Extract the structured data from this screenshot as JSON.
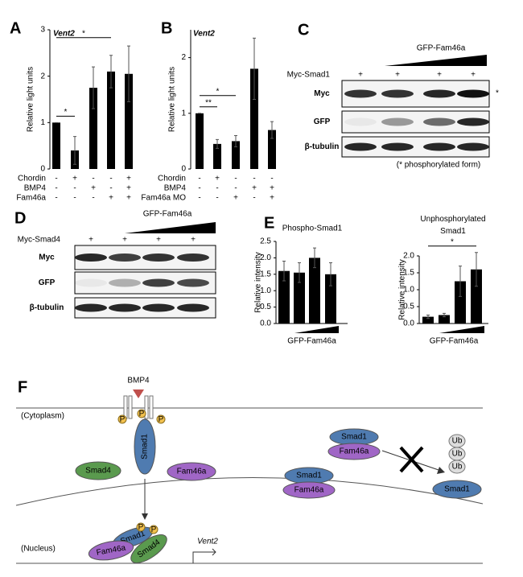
{
  "chart_data": [
    {
      "type": "bar",
      "panel_label": "A",
      "title": "Vent2",
      "ylabel": "Relative light units",
      "categories": [
        null,
        null,
        null,
        null,
        null
      ],
      "values": [
        1.0,
        0.4,
        1.75,
        2.1,
        2.05
      ],
      "errors": [
        0,
        0.3,
        0.45,
        0.35,
        0.6
      ],
      "color": "#000000",
      "ylim": [
        0,
        3
      ],
      "yticks": [
        0,
        1,
        2,
        3
      ],
      "conditions": [
        {
          "name": "Chordin",
          "marks": [
            "-",
            "+",
            "-",
            "-",
            "+"
          ]
        },
        {
          "name": "BMP4",
          "marks": [
            "-",
            "-",
            "+",
            "-",
            "+"
          ]
        },
        {
          "name": "Fam46a",
          "marks": [
            "-",
            "-",
            "-",
            "+",
            "+"
          ]
        }
      ],
      "annotations": [
        {
          "text": "*",
          "between": [
            0,
            1
          ]
        },
        {
          "text": "*",
          "between": [
            0,
            3
          ]
        }
      ]
    },
    {
      "type": "bar",
      "panel_label": "B",
      "title": "Vent2",
      "ylabel": "Relative light units",
      "categories": [
        null,
        null,
        null,
        null,
        null
      ],
      "values": [
        1.0,
        0.45,
        0.5,
        1.8,
        0.7
      ],
      "errors": [
        0,
        0.08,
        0.1,
        0.55,
        0.15
      ],
      "color": "#000000",
      "ylim": [
        0,
        2.5
      ],
      "yticks": [
        0,
        1,
        2
      ],
      "conditions": [
        {
          "name": "Chordin",
          "marks": [
            "-",
            "+",
            "-",
            "-",
            "-"
          ]
        },
        {
          "name": "BMP4",
          "marks": [
            "-",
            "-",
            "-",
            "+",
            "+"
          ]
        },
        {
          "name": "Fam46a  MO",
          "marks": [
            "-",
            "-",
            "+",
            "-",
            "+"
          ]
        }
      ],
      "annotations": [
        {
          "text": "**",
          "between": [
            0,
            1
          ]
        },
        {
          "text": "*",
          "between": [
            0,
            2
          ]
        }
      ]
    },
    {
      "type": "bar",
      "panel_label": "E",
      "title": "Phospho-Smad1",
      "ylabel": "Relative intensity",
      "xlabel": "GFP-Fam46a",
      "categories": [
        null,
        null,
        null,
        null
      ],
      "values": [
        1.6,
        1.55,
        2.0,
        1.5
      ],
      "errors": [
        0.3,
        0.3,
        0.3,
        0.35
      ],
      "color": "#000000",
      "ylim": [
        0,
        2.5
      ],
      "yticks": [
        {
          "value": 0,
          "label": "0.0"
        },
        0.5,
        {
          "value": 1,
          "label": "1.0"
        },
        1.5,
        {
          "value": 2,
          "label": "2.0"
        },
        2.5
      ]
    },
    {
      "type": "bar",
      "title": "Unphosphorylated Smad1",
      "ylabel": "Relative intensity",
      "xlabel": "GFP-Fam46a",
      "categories": [
        null,
        null,
        null,
        null
      ],
      "values": [
        0.2,
        0.25,
        1.25,
        1.6
      ],
      "errors": [
        0.05,
        0.05,
        0.45,
        0.5
      ],
      "color": "#000000",
      "ylim": [
        0,
        2
      ],
      "yticks": [
        {
          "value": 0,
          "label": "0.0"
        },
        0.5,
        {
          "value": 1,
          "label": "1.0"
        },
        1.5,
        {
          "value": 2,
          "label": "2.0"
        }
      ],
      "annotations": [
        {
          "text": "*",
          "between": [
            0,
            3
          ]
        }
      ]
    }
  ],
  "blots": [
    {
      "label": "C",
      "treatment": "GFP-Fam46a",
      "construct": "Myc-Smad1",
      "lanes": [
        "+",
        "+",
        "+",
        "+"
      ],
      "rows": [
        "Myc",
        "GFP",
        "β-tubulin"
      ],
      "marker": "*",
      "note": "(* phosphorylated form)"
    },
    {
      "label": "D",
      "treatment": "GFP-Fam46a",
      "construct": "Myc-Smad4",
      "lanes": [
        "+",
        "+",
        "+",
        "+"
      ],
      "rows": [
        "Myc",
        "GFP",
        "β-tubulin"
      ]
    }
  ],
  "diagram": {
    "label": "F",
    "ligand": "BMP4",
    "cytoplasm": "(Cytoplasm)",
    "nucleus": "(Nucleus)",
    "gene": "Vent2",
    "phospho": "P",
    "complex": {
      "smad1": "Smad1",
      "smad4": "Smad4",
      "fam46a": "Fam46a"
    },
    "pairs": [
      [
        "Smad1",
        "Fam46a"
      ],
      [
        "Smad1",
        "Fam46a"
      ]
    ],
    "ub": [
      "Ub",
      "Ub",
      "Ub"
    ],
    "degraded": "Smad1",
    "nuclear_complex": [
      "Smad1",
      "Fam46a",
      "Smad4"
    ]
  }
}
